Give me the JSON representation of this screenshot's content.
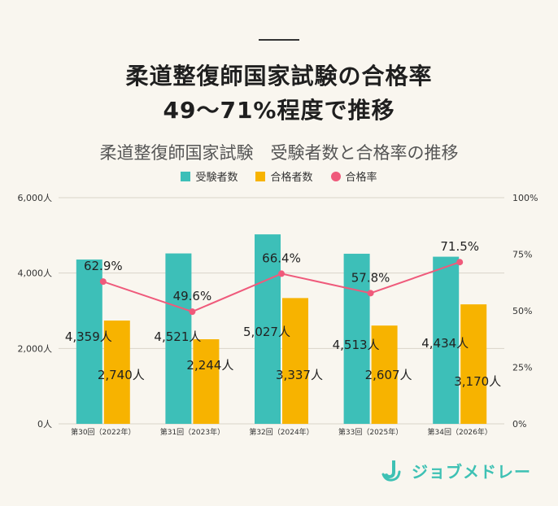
{
  "headline": {
    "line1": "柔道整復師国家試験の合格率",
    "line2": "49～71%程度で推移"
  },
  "colors": {
    "examinees": "#3dbfb8",
    "passers": "#f7b300",
    "rate": "#ef5a7b",
    "grid": "#d9d4c9",
    "axis_text": "#333333",
    "logo": "#3ec1b4"
  },
  "logo": {
    "text": "ジョブメドレー",
    "icon": "job-medley-j-logo"
  },
  "chart_data": {
    "type": "bar",
    "title": "柔道整復師国家試験　受験者数と合格率の推移",
    "categories": [
      "第30回（2022年）",
      "第31回（2023年）",
      "第32回（2024年）",
      "第33回（2025年）",
      "第34回（2026年）"
    ],
    "series": [
      {
        "name": "受験者数",
        "values": [
          4359,
          4521,
          5027,
          4513,
          4434
        ],
        "labels": [
          "4,359人",
          "4,521人",
          "5,027人",
          "4,513人",
          "4,434人"
        ]
      },
      {
        "name": "合格者数",
        "values": [
          2740,
          2244,
          3337,
          2607,
          3170
        ],
        "labels": [
          "2,740人",
          "2,244人",
          "3,337人",
          "2,607人",
          "3,170人"
        ]
      },
      {
        "name": "合格率",
        "type": "line",
        "axis": "right",
        "values": [
          62.9,
          49.6,
          66.4,
          57.8,
          71.5
        ],
        "labels": [
          "62.9%",
          "49.6%",
          "66.4%",
          "57.8%",
          "71.5%"
        ]
      }
    ],
    "ylim": [
      0,
      6000
    ],
    "yticks": [
      "0人",
      "2,000人",
      "4,000人",
      "6,000人"
    ],
    "y2lim": [
      0,
      100
    ],
    "y2ticks": [
      "0%",
      "25%",
      "50%",
      "75%",
      "100%"
    ],
    "legend": "top-center",
    "grid": true
  }
}
